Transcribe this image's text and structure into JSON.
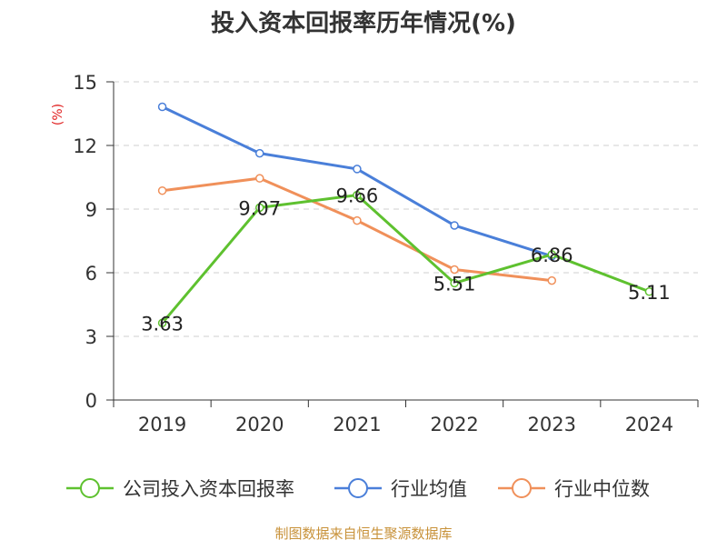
{
  "chart_data": {
    "type": "line",
    "title": "投入资本回报率历年情况(%)",
    "ylabel": "(%)",
    "xlabel": "",
    "categories": [
      "2019",
      "2020",
      "2021",
      "2022",
      "2023",
      "2024"
    ],
    "ylim": [
      0,
      15
    ],
    "yticks": [
      0,
      3,
      6,
      9,
      12,
      15
    ],
    "grid": true,
    "legend_position": "bottom",
    "series": [
      {
        "name": "公司投入资本回报率",
        "color": "#5ec12f",
        "values": [
          3.63,
          9.07,
          9.66,
          5.51,
          6.86,
          5.11
        ],
        "labels": [
          "3.63",
          "9.07",
          "9.66",
          "5.51",
          "6.86",
          "5.11"
        ]
      },
      {
        "name": "行业均值",
        "color": "#4a7fd9",
        "values": [
          13.82,
          11.63,
          10.89,
          8.23,
          6.78,
          null
        ]
      },
      {
        "name": "行业中位数",
        "color": "#f0905a",
        "values": [
          9.87,
          10.45,
          8.46,
          6.15,
          5.63,
          null
        ]
      }
    ],
    "source": "制图数据来自恒生聚源数据库"
  }
}
